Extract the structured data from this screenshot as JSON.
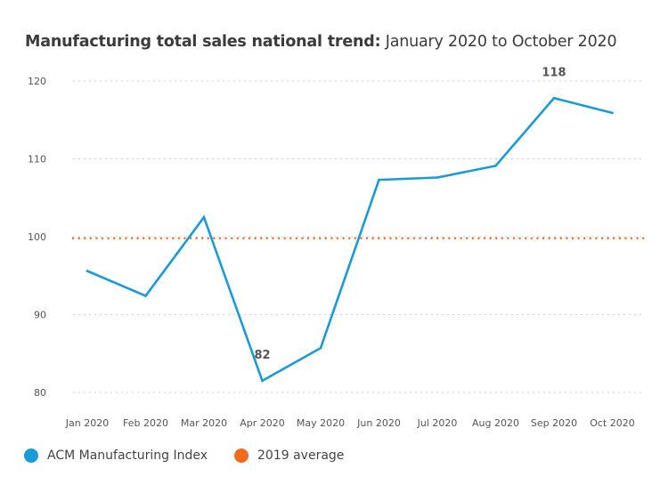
{
  "chart_data": {
    "type": "line",
    "title_bold": "Manufacturing total sales national trend:",
    "title_rest": " January 2020 to October 2020",
    "categories": [
      "Jan 2020",
      "Feb 2020",
      "Mar 2020",
      "Apr 2020",
      "May 2020",
      "Jun 2020",
      "Jul 2020",
      "Aug 2020",
      "Sep 2020",
      "Oct 2020"
    ],
    "series": [
      {
        "name": "ACM Manufacturing Index",
        "color": "#1a9bd7",
        "values": [
          95.6,
          92.4,
          102.5,
          81.5,
          85.7,
          107.3,
          107.6,
          109.1,
          117.8,
          115.9
        ]
      }
    ],
    "reference_line": {
      "name": "2019 average",
      "value": 99.8,
      "color": "#f26a1b",
      "style": "dotted"
    },
    "data_labels": [
      {
        "index": 3,
        "text": "82"
      },
      {
        "index": 8,
        "text": "118"
      }
    ],
    "yticks": [
      80,
      90,
      100,
      110,
      120
    ],
    "ylim": [
      80,
      120
    ],
    "grid": true,
    "legend_position": "bottom-left"
  },
  "legend": {
    "series_label": "ACM Manufacturing Index",
    "reference_label": "2019 average"
  }
}
